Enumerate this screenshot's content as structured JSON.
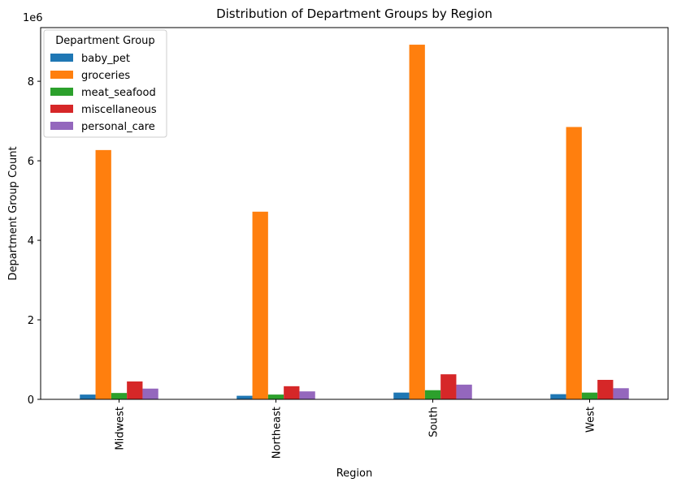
{
  "chart_data": {
    "type": "bar",
    "title": "Distribution of Department Groups by Region",
    "xlabel": "Region",
    "ylabel": "Department Group Count",
    "y_scale_label": "1e6",
    "ylim": [
      0,
      9350000
    ],
    "yticks": [
      0,
      2000000,
      4000000,
      6000000,
      8000000
    ],
    "ytick_labels": [
      "0",
      "2",
      "4",
      "6",
      "8"
    ],
    "categories": [
      "Midwest",
      "Northeast",
      "South",
      "West"
    ],
    "grid": false,
    "legend": {
      "title": "Department Group",
      "placement": "top-left"
    },
    "series": [
      {
        "name": "baby_pet",
        "color": "#1f77b4",
        "values": [
          120000,
          90000,
          170000,
          130000
        ]
      },
      {
        "name": "groceries",
        "color": "#ff7f0e",
        "values": [
          6270000,
          4720000,
          8920000,
          6850000
        ]
      },
      {
        "name": "meat_seafood",
        "color": "#2ca02c",
        "values": [
          160000,
          120000,
          230000,
          170000
        ]
      },
      {
        "name": "miscellaneous",
        "color": "#d62728",
        "values": [
          450000,
          330000,
          630000,
          490000
        ]
      },
      {
        "name": "personal_care",
        "color": "#9467bd",
        "values": [
          270000,
          200000,
          370000,
          280000
        ]
      }
    ]
  }
}
